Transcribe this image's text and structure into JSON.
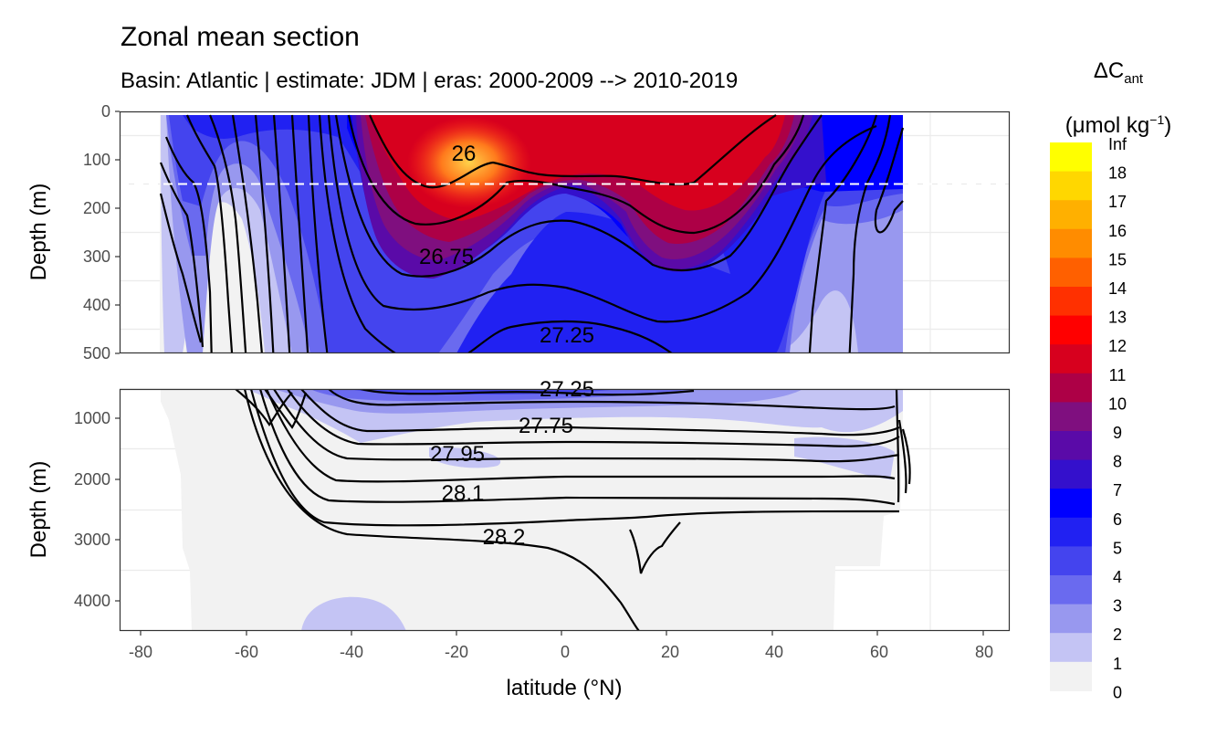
{
  "chart_data": {
    "type": "heatmap",
    "title": "Zonal mean section",
    "subtitle": "Basin: Atlantic | estimate: JDM  | eras: 2000-2009 --> 2010-2019",
    "xlabel": "latitude (°N)",
    "x_ticks": [
      "-80",
      "-60",
      "-40",
      "-20",
      "0",
      "20",
      "40",
      "60",
      "80"
    ],
    "x_tick_values": [
      -80,
      -60,
      -40,
      -20,
      0,
      20,
      40,
      60,
      80
    ],
    "xlim": [
      -85,
      85
    ],
    "data_lat_range": [
      -78,
      64
    ],
    "legend": {
      "title_main": "ΔC",
      "title_sub": "ant",
      "unit_main": "(μmol kg",
      "unit_sup": "−1",
      "unit_close": ")",
      "labels": [
        "Inf",
        "18",
        "17",
        "16",
        "15",
        "14",
        "13",
        "12",
        "11",
        "10",
        "9",
        "8",
        "7",
        "6",
        "5",
        "4",
        "3",
        "2",
        "1",
        "0"
      ],
      "colors": [
        "#ffff00",
        "#ffd700",
        "#ffb000",
        "#ff8c00",
        "#ff6000",
        "#ff3000",
        "#ff0000",
        "#d7001e",
        "#ad0046",
        "#7f0f7f",
        "#5a0aa8",
        "#3410cc",
        "#0000ff",
        "#2121f2",
        "#4444ee",
        "#6a6aef",
        "#9898ef",
        "#c4c4f4",
        "#f2f2f2"
      ]
    },
    "panels": [
      {
        "name": "upper",
        "ylabel": "Depth (m)",
        "ylim": [
          0,
          500
        ],
        "y_ticks": [
          "0",
          "100",
          "200",
          "300",
          "400",
          "500"
        ],
        "y_tick_values": [
          0,
          100,
          200,
          300,
          400,
          500
        ],
        "reference_depth": 150,
        "contour_labels": [
          {
            "text": "26",
            "lat": -19,
            "depth": 88
          },
          {
            "text": "26.75",
            "lat": -23,
            "depth": 300
          },
          {
            "text": "27.25",
            "lat": 0,
            "depth": 460
          }
        ]
      },
      {
        "name": "lower",
        "ylabel": "Depth (m)",
        "ylim": [
          500,
          4500
        ],
        "y_ticks": [
          "1000",
          "2000",
          "3000",
          "4000"
        ],
        "y_tick_values": [
          1000,
          2000,
          3000,
          4000
        ],
        "contour_labels": [
          {
            "text": "27.25",
            "lat": 0,
            "depth": 560
          },
          {
            "text": "27.75",
            "lat": -4,
            "depth": 1100
          },
          {
            "text": "27.95",
            "lat": -21,
            "depth": 1570
          },
          {
            "text": "28.1",
            "lat": -19,
            "depth": 2250
          },
          {
            "text": "28.2",
            "lat": -12,
            "depth": 2940
          }
        ]
      }
    ]
  }
}
